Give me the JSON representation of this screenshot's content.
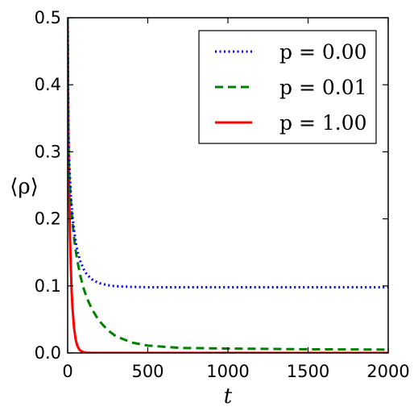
{
  "chart_data": {
    "type": "line",
    "title": "",
    "xlabel": "t",
    "ylabel": "⟨ρ⟩",
    "xlim": [
      0,
      2000
    ],
    "ylim": [
      0.0,
      0.5
    ],
    "xticks": [
      0,
      500,
      1000,
      1500,
      2000
    ],
    "xtick_labels": [
      "0",
      "500",
      "1000",
      "1500",
      "2000"
    ],
    "yticks": [
      0.0,
      0.1,
      0.2,
      0.3,
      0.4,
      0.5
    ],
    "ytick_labels": [
      "0.0",
      "0.1",
      "0.2",
      "0.3",
      "0.4",
      "0.5"
    ],
    "grid": false,
    "legend_position": "top-right",
    "series": [
      {
        "name": "p = 0.00",
        "color": "#0000ff",
        "linestyle": "dotted",
        "x": [
          0,
          5,
          10,
          20,
          30,
          40,
          50,
          60,
          80,
          100,
          120,
          150,
          180,
          200,
          250,
          300,
          400,
          500,
          700,
          1000,
          1500,
          2000
        ],
        "y": [
          0.5,
          0.33,
          0.285,
          0.235,
          0.205,
          0.183,
          0.166,
          0.153,
          0.136,
          0.125,
          0.117,
          0.11,
          0.106,
          0.104,
          0.101,
          0.0995,
          0.0985,
          0.098,
          0.098,
          0.098,
          0.098,
          0.098
        ]
      },
      {
        "name": "p = 0.01",
        "color": "#008000",
        "linestyle": "dashed",
        "x": [
          0,
          5,
          10,
          20,
          30,
          40,
          50,
          60,
          80,
          100,
          120,
          150,
          180,
          200,
          250,
          300,
          400,
          500,
          700,
          1000,
          1500,
          2000
        ],
        "y": [
          0.5,
          0.31,
          0.265,
          0.225,
          0.195,
          0.172,
          0.153,
          0.138,
          0.114,
          0.096,
          0.082,
          0.066,
          0.054,
          0.047,
          0.034,
          0.025,
          0.0155,
          0.011,
          0.0075,
          0.0065,
          0.0055,
          0.005
        ]
      },
      {
        "name": "p = 1.00",
        "color": "#ff0000",
        "linestyle": "solid",
        "x": [
          0,
          3,
          6,
          10,
          15,
          20,
          25,
          30,
          40,
          50,
          60,
          70,
          80,
          100,
          120,
          150,
          200,
          300,
          500,
          1000,
          2000
        ],
        "y": [
          0.5,
          0.38,
          0.3,
          0.23,
          0.17,
          0.125,
          0.092,
          0.068,
          0.037,
          0.02,
          0.011,
          0.006,
          0.0033,
          0.001,
          0.0003,
          0.0,
          0.0,
          0.0,
          0.0,
          0.0,
          0.0
        ]
      }
    ]
  }
}
